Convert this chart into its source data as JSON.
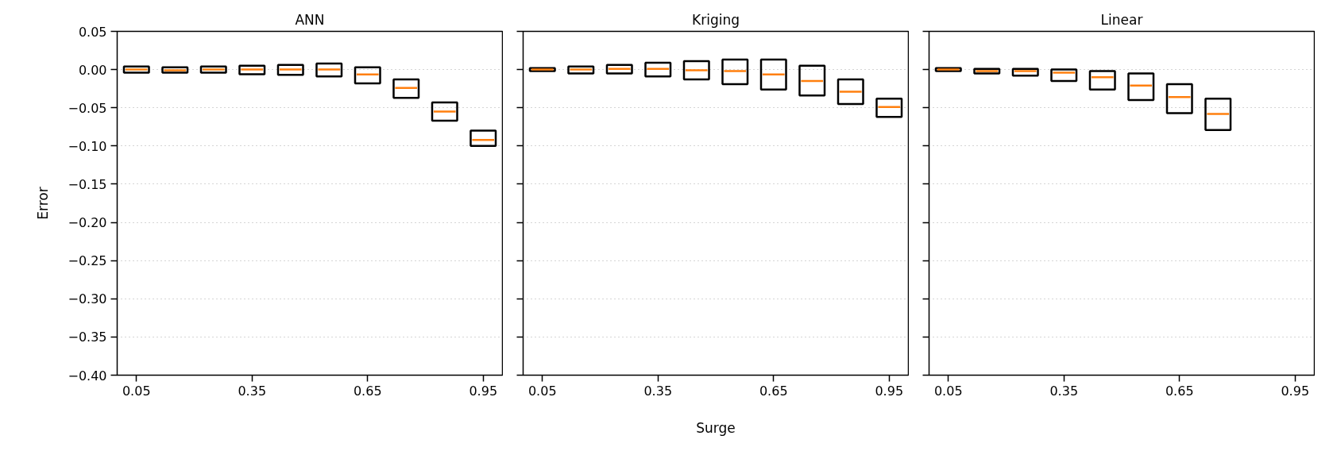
{
  "chart_data": [
    {
      "type": "box",
      "title": "ANN",
      "ylabel": "Error",
      "x": [
        0.05,
        0.15,
        0.25,
        0.35,
        0.45,
        0.55,
        0.65,
        0.75,
        0.85,
        0.95
      ],
      "xlim": [
        0.0,
        1.0
      ],
      "xticks": [
        0.05,
        0.35,
        0.65,
        0.95
      ],
      "ylim": [
        -0.4,
        0.05
      ],
      "yticks": [
        {
          "value": -0.4,
          "label": "−0.40"
        },
        {
          "value": -0.35,
          "label": "−0.35"
        },
        {
          "value": -0.3,
          "label": "−0.30"
        },
        {
          "value": -0.25,
          "label": "−0.25"
        },
        {
          "value": -0.2,
          "label": "−0.20"
        },
        {
          "value": -0.15,
          "label": "−0.15"
        },
        {
          "value": -0.1,
          "label": "−0.10"
        },
        {
          "value": -0.05,
          "label": "−0.05"
        },
        {
          "value": 0.0,
          "label": "0.00"
        },
        {
          "value": 0.05,
          "label": "0.05"
        }
      ],
      "grid": "y",
      "boxes": [
        {
          "low": -0.004,
          "q1": -0.004,
          "median": 0.0,
          "q3": 0.004,
          "high": 0.004
        },
        {
          "low": -0.004,
          "q1": -0.004,
          "median": -0.001,
          "q3": 0.003,
          "high": 0.003
        },
        {
          "low": -0.004,
          "q1": -0.004,
          "median": 0.0,
          "q3": 0.004,
          "high": 0.004
        },
        {
          "low": -0.006,
          "q1": -0.006,
          "median": 0.0,
          "q3": 0.005,
          "high": 0.005
        },
        {
          "low": -0.007,
          "q1": -0.007,
          "median": 0.0,
          "q3": 0.006,
          "high": 0.006
        },
        {
          "low": -0.009,
          "q1": -0.009,
          "median": 0.0,
          "q3": 0.008,
          "high": 0.008
        },
        {
          "low": -0.018,
          "q1": -0.018,
          "median": -0.0065,
          "q3": 0.003,
          "high": 0.003
        },
        {
          "low": -0.037,
          "q1": -0.037,
          "median": -0.024,
          "q3": -0.013,
          "high": -0.013
        },
        {
          "low": -0.067,
          "q1": -0.067,
          "median": -0.055,
          "q3": -0.043,
          "high": -0.043
        },
        {
          "low": -0.1,
          "q1": -0.1,
          "median": -0.092,
          "q3": -0.08,
          "high": -0.08
        }
      ]
    },
    {
      "type": "box",
      "title": "Kriging",
      "xlabel": "Surge",
      "x": [
        0.05,
        0.15,
        0.25,
        0.35,
        0.45,
        0.55,
        0.65,
        0.75,
        0.85,
        0.95
      ],
      "xlim": [
        0.0,
        1.0
      ],
      "xticks": [
        0.05,
        0.35,
        0.65,
        0.95
      ],
      "ylim": [
        -0.4,
        0.05
      ],
      "yticks": [
        {
          "value": -0.4,
          "label": null
        },
        {
          "value": -0.35,
          "label": null
        },
        {
          "value": -0.3,
          "label": null
        },
        {
          "value": -0.25,
          "label": null
        },
        {
          "value": -0.2,
          "label": null
        },
        {
          "value": -0.15,
          "label": null
        },
        {
          "value": -0.1,
          "label": null
        },
        {
          "value": -0.05,
          "label": null
        },
        {
          "value": 0.0,
          "label": null
        },
        {
          "value": 0.05,
          "label": null
        }
      ],
      "grid": "y",
      "tick_labels": "x",
      "boxes": [
        {
          "low": -0.002,
          "q1": -0.002,
          "median": 0.0,
          "q3": 0.002,
          "high": 0.002
        },
        {
          "low": -0.005,
          "q1": -0.005,
          "median": 0.0,
          "q3": 0.004,
          "high": 0.004
        },
        {
          "low": -0.005,
          "q1": -0.005,
          "median": 0.001,
          "q3": 0.006,
          "high": 0.006
        },
        {
          "low": -0.009,
          "q1": -0.009,
          "median": 0.001,
          "q3": 0.009,
          "high": 0.009
        },
        {
          "low": -0.013,
          "q1": -0.013,
          "median": -0.001,
          "q3": 0.011,
          "high": 0.011
        },
        {
          "low": -0.019,
          "q1": -0.019,
          "median": -0.002,
          "q3": 0.013,
          "high": 0.013
        },
        {
          "low": -0.026,
          "q1": -0.026,
          "median": -0.0065,
          "q3": 0.013,
          "high": 0.013
        },
        {
          "low": -0.034,
          "q1": -0.034,
          "median": -0.015,
          "q3": 0.005,
          "high": 0.005
        },
        {
          "low": -0.045,
          "q1": -0.045,
          "median": -0.029,
          "q3": -0.013,
          "high": -0.013
        },
        {
          "low": -0.062,
          "q1": -0.062,
          "median": -0.049,
          "q3": -0.038,
          "high": -0.038
        }
      ]
    },
    {
      "type": "box",
      "title": "Linear",
      "x": [
        0.05,
        0.15,
        0.25,
        0.35,
        0.45,
        0.55,
        0.65,
        0.75
      ],
      "xlim": [
        0.0,
        1.0
      ],
      "xticks": [
        0.05,
        0.35,
        0.65,
        0.95
      ],
      "ylim": [
        -0.4,
        0.05
      ],
      "yticks": [
        {
          "value": -0.4,
          "label": null
        },
        {
          "value": -0.35,
          "label": null
        },
        {
          "value": -0.3,
          "label": null
        },
        {
          "value": -0.25,
          "label": null
        },
        {
          "value": -0.2,
          "label": null
        },
        {
          "value": -0.15,
          "label": null
        },
        {
          "value": -0.1,
          "label": null
        },
        {
          "value": -0.05,
          "label": null
        },
        {
          "value": 0.0,
          "label": null
        },
        {
          "value": 0.05,
          "label": null
        }
      ],
      "grid": "y",
      "tick_labels": "x",
      "boxes": [
        {
          "low": -0.002,
          "q1": -0.002,
          "median": 0.0,
          "q3": 0.002,
          "high": 0.002
        },
        {
          "low": -0.005,
          "q1": -0.005,
          "median": -0.002,
          "q3": 0.001,
          "high": 0.001
        },
        {
          "low": -0.008,
          "q1": -0.008,
          "median": -0.002,
          "q3": 0.001,
          "high": 0.001
        },
        {
          "low": -0.015,
          "q1": -0.015,
          "median": -0.004,
          "q3": 0.0,
          "high": 0.0
        },
        {
          "low": -0.026,
          "q1": -0.026,
          "median": -0.01,
          "q3": -0.002,
          "high": -0.002
        },
        {
          "low": -0.04,
          "q1": -0.04,
          "median": -0.021,
          "q3": -0.005,
          "high": -0.005
        },
        {
          "low": -0.057,
          "q1": -0.057,
          "median": -0.036,
          "q3": -0.019,
          "high": -0.019
        },
        {
          "low": -0.079,
          "q1": -0.079,
          "median": -0.058,
          "q3": -0.038,
          "high": -0.038
        }
      ]
    }
  ]
}
